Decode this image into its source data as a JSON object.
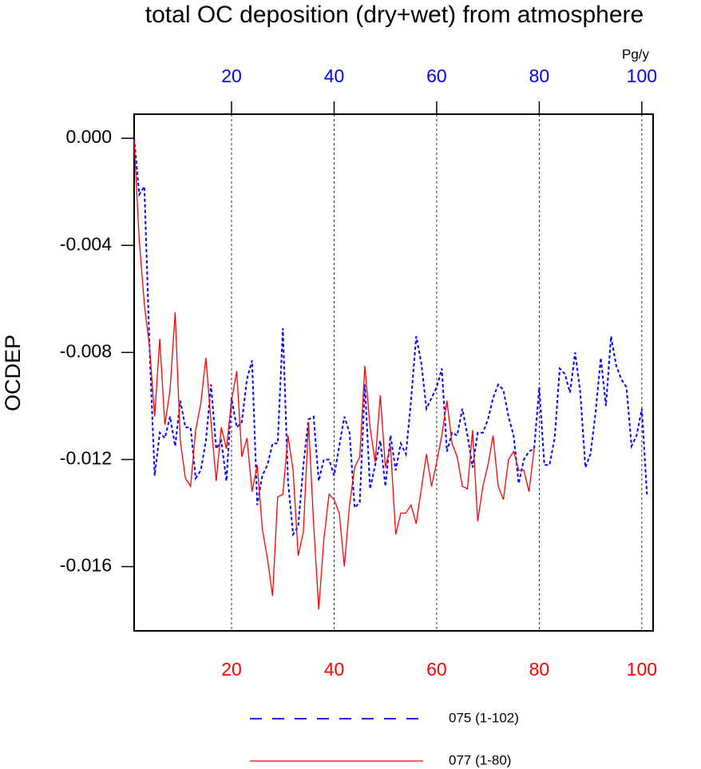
{
  "chart_data": {
    "type": "line",
    "title": "total OC deposition (dry+wet) from atmosphere",
    "ylabel": "OCDEP",
    "units": "Pg/y",
    "xlim": [
      1,
      102.2
    ],
    "ylim": [
      -0.0184,
      0.0009
    ],
    "xticks": [
      20,
      40,
      60,
      80,
      100
    ],
    "yticks": [
      {
        "value": 0,
        "label": "0.000"
      },
      -0.004,
      -0.008,
      -0.012,
      -0.016
    ],
    "grid": true,
    "top_axis_color": "#0000ff",
    "bottom_axis_color": "#ff0000",
    "series": [
      {
        "name": "075 (1-102)",
        "color": "#0000ff",
        "dashed": true,
        "x": [
          1,
          2,
          3,
          4,
          5,
          6,
          7,
          8,
          9,
          10,
          11,
          12,
          13,
          14,
          15,
          16,
          17,
          18,
          19,
          20,
          21,
          22,
          23,
          24,
          25,
          26,
          27,
          28,
          29,
          30,
          31,
          32,
          33,
          34,
          35,
          36,
          37,
          38,
          39,
          40,
          41,
          42,
          43,
          44,
          45,
          46,
          47,
          48,
          49,
          50,
          51,
          52,
          53,
          54,
          55,
          56,
          57,
          58,
          59,
          60,
          61,
          62,
          63,
          64,
          65,
          66,
          67,
          68,
          69,
          70,
          71,
          72,
          73,
          74,
          75,
          76,
          77,
          78,
          79,
          80,
          81,
          82,
          83,
          84,
          85,
          86,
          87,
          88,
          89,
          90,
          91,
          92,
          93,
          94,
          95,
          96,
          97,
          98,
          99,
          100,
          101
        ],
        "values": [
          0.0,
          -0.0021,
          -0.0018,
          -0.0078,
          -0.0126,
          -0.011,
          -0.0112,
          -0.0104,
          -0.0115,
          -0.0098,
          -0.0108,
          -0.0108,
          -0.0127,
          -0.0124,
          -0.0113,
          -0.0092,
          -0.0116,
          -0.0113,
          -0.0128,
          -0.0097,
          -0.0108,
          -0.0106,
          -0.009,
          -0.0083,
          -0.0137,
          -0.0126,
          -0.0122,
          -0.0114,
          -0.0114,
          -0.0071,
          -0.0128,
          -0.0148,
          -0.0145,
          -0.0122,
          -0.0105,
          -0.0104,
          -0.0128,
          -0.012,
          -0.012,
          -0.0126,
          -0.0115,
          -0.0104,
          -0.011,
          -0.0138,
          -0.0136,
          -0.0092,
          -0.0131,
          -0.0122,
          -0.0113,
          -0.013,
          -0.0111,
          -0.0124,
          -0.0114,
          -0.0118,
          -0.0098,
          -0.0074,
          -0.0084,
          -0.0101,
          -0.0097,
          -0.0093,
          -0.0086,
          -0.0117,
          -0.011,
          -0.0111,
          -0.0101,
          -0.0111,
          -0.0123,
          -0.011,
          -0.011,
          -0.0105,
          -0.0097,
          -0.0092,
          -0.0094,
          -0.0104,
          -0.0111,
          -0.0129,
          -0.012,
          -0.0117,
          -0.0116,
          -0.0093,
          -0.0122,
          -0.0122,
          -0.0112,
          -0.0086,
          -0.0088,
          -0.0095,
          -0.008,
          -0.0095,
          -0.0123,
          -0.0118,
          -0.0102,
          -0.0082,
          -0.01,
          -0.0074,
          -0.0085,
          -0.009,
          -0.0093,
          -0.0115,
          -0.0111,
          -0.0101,
          -0.0133
        ]
      },
      {
        "name": "077 (1-80)",
        "color": "#ff0000",
        "dashed": false,
        "x": [
          1,
          2,
          3,
          4,
          5,
          6,
          7,
          8,
          9,
          10,
          11,
          12,
          13,
          14,
          15,
          16,
          17,
          18,
          19,
          20,
          21,
          22,
          23,
          24,
          25,
          26,
          27,
          28,
          29,
          30,
          31,
          32,
          33,
          34,
          35,
          36,
          37,
          38,
          39,
          40,
          41,
          42,
          43,
          44,
          45,
          46,
          47,
          48,
          49,
          50,
          51,
          52,
          53,
          54,
          55,
          56,
          57,
          58,
          59,
          60,
          61,
          62,
          63,
          64,
          65,
          66,
          67,
          68,
          69,
          70,
          71,
          72,
          73,
          74,
          75,
          76,
          77,
          78,
          79
        ],
        "values": [
          -0.0001,
          -0.0038,
          -0.0062,
          -0.0078,
          -0.0104,
          -0.0075,
          -0.0107,
          -0.0094,
          -0.0065,
          -0.0113,
          -0.0127,
          -0.013,
          -0.0109,
          -0.0099,
          -0.0082,
          -0.0106,
          -0.0128,
          -0.0108,
          -0.0116,
          -0.0098,
          -0.0087,
          -0.0119,
          -0.0112,
          -0.0132,
          -0.0122,
          -0.0146,
          -0.0157,
          -0.0171,
          -0.0134,
          -0.0133,
          -0.0111,
          -0.0124,
          -0.0156,
          -0.0147,
          -0.0106,
          -0.0144,
          -0.0176,
          -0.015,
          -0.0133,
          -0.0135,
          -0.014,
          -0.016,
          -0.0137,
          -0.0123,
          -0.0119,
          -0.0085,
          -0.0108,
          -0.0121,
          -0.0096,
          -0.0123,
          -0.0115,
          -0.0148,
          -0.014,
          -0.014,
          -0.0137,
          -0.0144,
          -0.0131,
          -0.0118,
          -0.013,
          -0.0121,
          -0.0111,
          -0.0098,
          -0.0114,
          -0.0119,
          -0.013,
          -0.0131,
          -0.0109,
          -0.0143,
          -0.013,
          -0.0122,
          -0.0111,
          -0.013,
          -0.0135,
          -0.012,
          -0.0117,
          -0.0124,
          -0.0124,
          -0.0132,
          -0.0116
        ]
      }
    ]
  }
}
